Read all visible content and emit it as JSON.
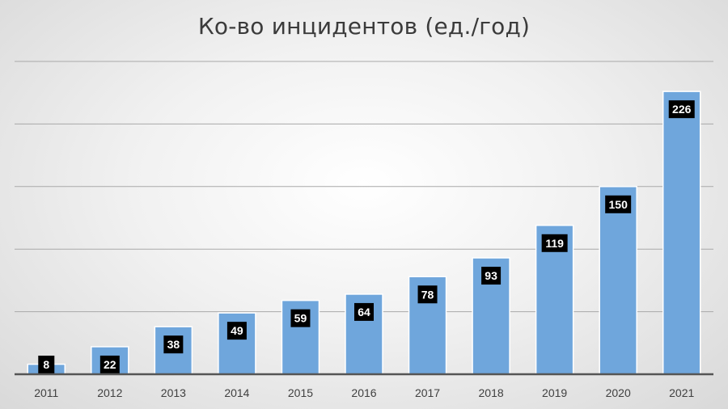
{
  "chart_data": {
    "type": "bar",
    "title": "Ко-во инцидентов (ед./год)",
    "categories": [
      "2011",
      "2012",
      "2013",
      "2014",
      "2015",
      "2016",
      "2017",
      "2018",
      "2019",
      "2020",
      "2021"
    ],
    "values": [
      8,
      22,
      38,
      49,
      59,
      64,
      78,
      93,
      119,
      150,
      226
    ],
    "ylim": [
      0,
      250
    ],
    "grid": true,
    "legend": "none",
    "colors": {
      "bar": "#6fa6dc",
      "bar_edge": "#ffffff",
      "label_bg": "#000000",
      "label_text": "#ffffff",
      "axis": "#555555",
      "grid": "#a9a9a9"
    }
  }
}
